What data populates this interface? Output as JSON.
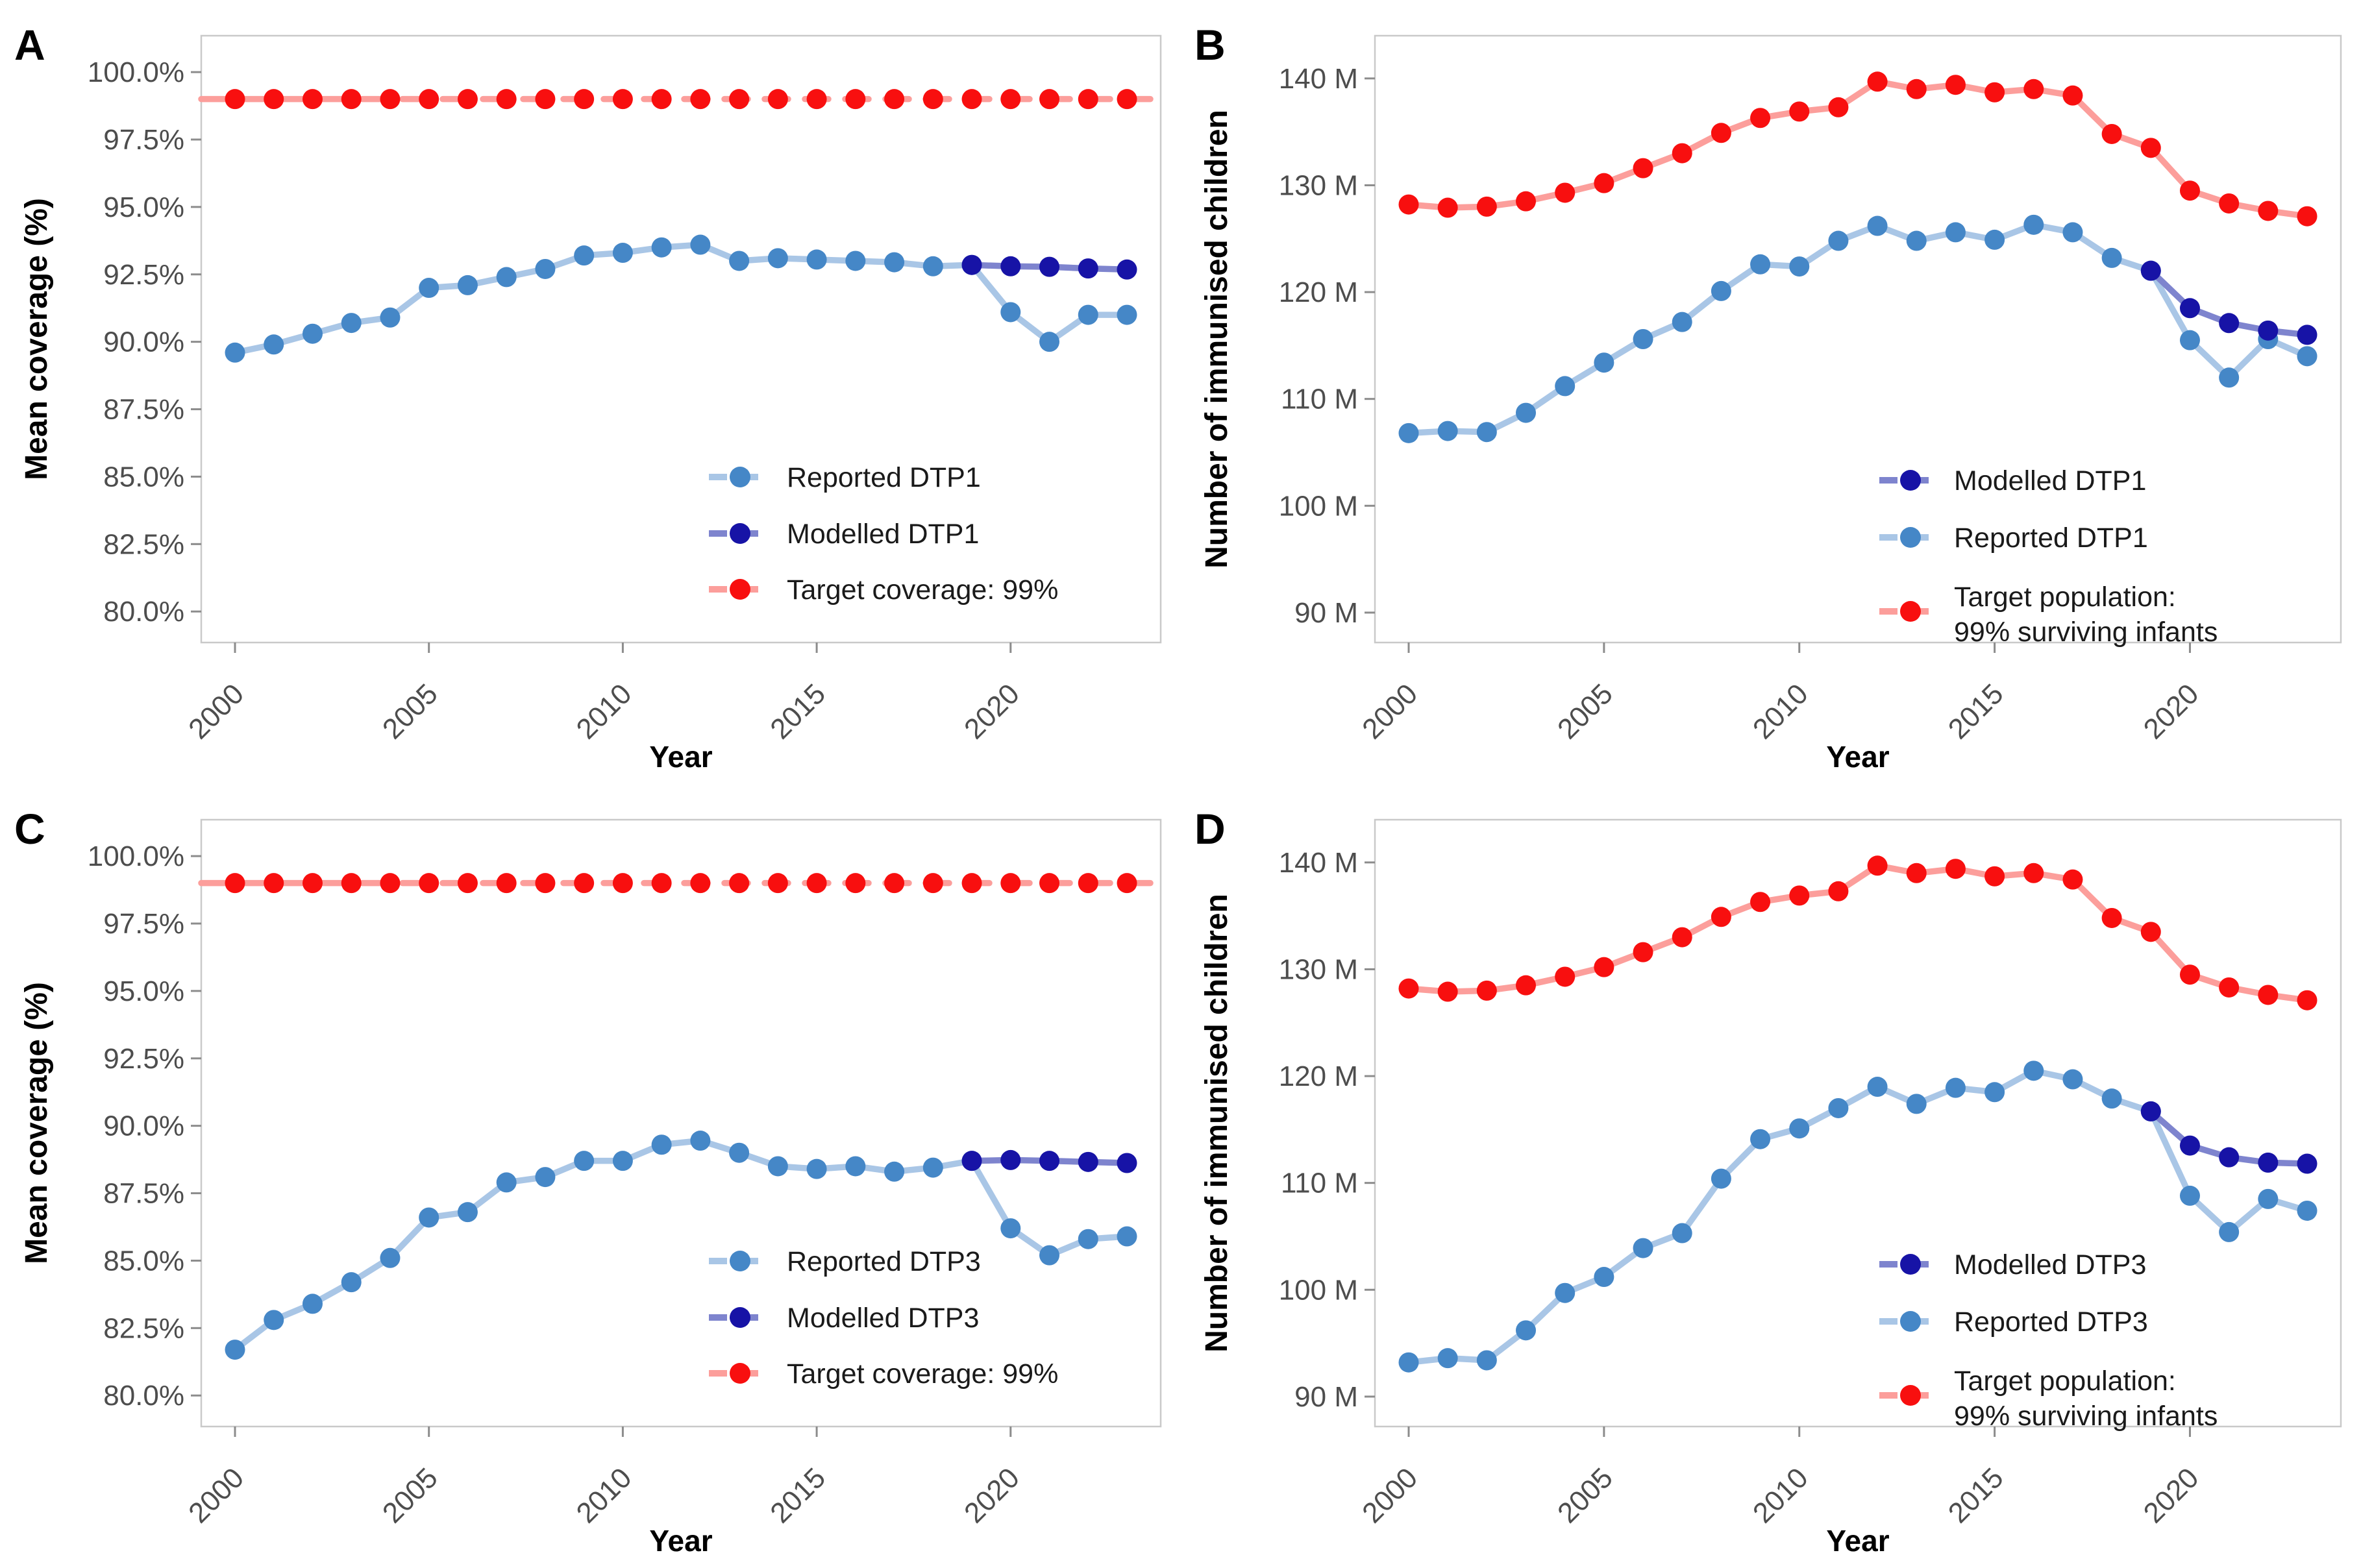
{
  "colors": {
    "reported_marker": "#4587C7",
    "reported_line": "#A9C6E6",
    "modelled_marker": "#1713A6",
    "modelled_line": "#7E84CE",
    "target_marker": "#F80F0F",
    "target_line": "#FC9E9B",
    "axis_text": "#4D4D4D",
    "axis_title": "#000000",
    "panel_border": "#C9C9C9",
    "tick": "#8C8C8C"
  },
  "chart_data": [
    {
      "id": "a",
      "panel_label": "A",
      "type": "line",
      "xlabel": "Year",
      "ylabel": "Mean coverage (%)",
      "x": [
        2000,
        2001,
        2002,
        2003,
        2004,
        2005,
        2006,
        2007,
        2008,
        2009,
        2010,
        2011,
        2012,
        2013,
        2014,
        2015,
        2016,
        2017,
        2018,
        2019,
        2020,
        2021,
        2022,
        2023
      ],
      "xtick_labels": [
        "2000",
        "2005",
        "2010",
        "2015",
        "2020"
      ],
      "xticks": [
        2000,
        2005,
        2010,
        2015,
        2020
      ],
      "ylim": [
        78.85,
        101.35
      ],
      "ytick_values": [
        100,
        97.5,
        95,
        92.5,
        90,
        87.5,
        85,
        82.5,
        80
      ],
      "ytick_labels": [
        "100.0%",
        "97.5%",
        "95.0%",
        "92.5%",
        "90.0%",
        "87.5%",
        "85.0%",
        "82.5%",
        "80.0%"
      ],
      "series": [
        {
          "name": "Target coverage: 99%",
          "role": "target",
          "dashed": true,
          "full_width": true,
          "x_start": 2000,
          "values": [
            99,
            99,
            99,
            99,
            99,
            99,
            99,
            99,
            99,
            99,
            99,
            99,
            99,
            99,
            99,
            99,
            99,
            99,
            99,
            99,
            99,
            99,
            99,
            99
          ]
        },
        {
          "name": "Reported DTP1",
          "role": "reported",
          "dashed": false,
          "full_width": false,
          "x_start": 2000,
          "values": [
            89.6,
            89.9,
            90.3,
            90.7,
            90.9,
            92.0,
            92.1,
            92.4,
            92.7,
            93.2,
            93.3,
            93.5,
            93.6,
            93.0,
            93.1,
            93.05,
            93.0,
            92.95,
            92.8,
            92.85,
            91.1,
            90.0,
            91.0,
            91.0
          ]
        },
        {
          "name": "Modelled DTP1",
          "role": "modelled",
          "dashed": false,
          "full_width": false,
          "x_start": 2019,
          "values": [
            92.85,
            92.8,
            92.78,
            92.72,
            92.68
          ]
        }
      ],
      "legend": {
        "position": "inside-bottom-right",
        "key_x": 1140,
        "label_x": 1212,
        "rows": [
          735,
          822,
          908
        ],
        "items": [
          {
            "label": "Reported DTP1",
            "role": "reported"
          },
          {
            "label": "Modelled DTP1",
            "role": "modelled"
          },
          {
            "label": "Target coverage: 99%",
            "role": "target"
          }
        ]
      }
    },
    {
      "id": "b",
      "panel_label": "B",
      "type": "line",
      "xlabel": "Year",
      "ylabel": "Number of immunised children",
      "x": [
        2000,
        2001,
        2002,
        2003,
        2004,
        2005,
        2006,
        2007,
        2008,
        2009,
        2010,
        2011,
        2012,
        2013,
        2014,
        2015,
        2016,
        2017,
        2018,
        2019,
        2020,
        2021,
        2022,
        2023
      ],
      "xtick_labels": [
        "2000",
        "2005",
        "2010",
        "2015",
        "2020"
      ],
      "xticks": [
        2000,
        2005,
        2010,
        2015,
        2020
      ],
      "ylim": [
        87.2,
        144.0
      ],
      "ytick_values": [
        140,
        130,
        120,
        110,
        100,
        90
      ],
      "ytick_labels": [
        "140 M",
        "130 M",
        "120 M",
        "110 M",
        "100 M",
        "90 M"
      ],
      "series": [
        {
          "name": "Target population: 99% surviving infants",
          "role": "target",
          "dashed": false,
          "full_width": false,
          "x_start": 2000,
          "values": [
            128.2,
            127.9,
            128.0,
            128.5,
            129.3,
            130.2,
            131.6,
            133.0,
            134.9,
            136.3,
            136.9,
            137.3,
            139.7,
            139.0,
            139.4,
            138.7,
            139.0,
            138.4,
            134.8,
            133.5,
            129.5,
            128.3,
            127.6,
            127.1
          ]
        },
        {
          "name": "Reported DTP1",
          "role": "reported",
          "dashed": false,
          "full_width": false,
          "x_start": 2000,
          "values": [
            106.8,
            107.0,
            106.9,
            108.7,
            111.2,
            113.4,
            115.6,
            117.2,
            120.1,
            122.6,
            122.4,
            124.8,
            126.2,
            124.8,
            125.6,
            124.9,
            126.3,
            125.6,
            123.2,
            122.0,
            115.5,
            112.0,
            115.6,
            114.0
          ]
        },
        {
          "name": "Modelled DTP1",
          "role": "modelled",
          "dashed": false,
          "full_width": false,
          "x_start": 2019,
          "values": [
            122.0,
            118.5,
            117.1,
            116.4,
            116.0
          ]
        }
      ],
      "legend": {
        "position": "inside-bottom-right",
        "key_x": 1125,
        "label_x": 1192,
        "rows": [
          740,
          828,
          942
        ],
        "items": [
          {
            "label": "Modelled DTP1",
            "role": "modelled"
          },
          {
            "label": "Reported DTP1",
            "role": "reported"
          },
          {
            "label": "Target population:",
            "label2": "99% surviving infants",
            "role": "target"
          }
        ]
      }
    },
    {
      "id": "c",
      "panel_label": "C",
      "type": "line",
      "xlabel": "Year",
      "ylabel": "Mean coverage (%)",
      "x": [
        2000,
        2001,
        2002,
        2003,
        2004,
        2005,
        2006,
        2007,
        2008,
        2009,
        2010,
        2011,
        2012,
        2013,
        2014,
        2015,
        2016,
        2017,
        2018,
        2019,
        2020,
        2021,
        2022,
        2023
      ],
      "xtick_labels": [
        "2000",
        "2005",
        "2010",
        "2015",
        "2020"
      ],
      "xticks": [
        2000,
        2005,
        2010,
        2015,
        2020
      ],
      "ylim": [
        78.85,
        101.35
      ],
      "ytick_values": [
        100,
        97.5,
        95,
        92.5,
        90,
        87.5,
        85,
        82.5,
        80
      ],
      "ytick_labels": [
        "100.0%",
        "97.5%",
        "95.0%",
        "92.5%",
        "90.0%",
        "87.5%",
        "85.0%",
        "82.5%",
        "80.0%"
      ],
      "series": [
        {
          "name": "Target coverage: 99%",
          "role": "target",
          "dashed": true,
          "full_width": true,
          "x_start": 2000,
          "values": [
            99,
            99,
            99,
            99,
            99,
            99,
            99,
            99,
            99,
            99,
            99,
            99,
            99,
            99,
            99,
            99,
            99,
            99,
            99,
            99,
            99,
            99,
            99,
            99
          ]
        },
        {
          "name": "Reported DTP3",
          "role": "reported",
          "dashed": false,
          "full_width": false,
          "x_start": 2000,
          "values": [
            81.7,
            82.8,
            83.4,
            84.2,
            85.1,
            86.6,
            86.8,
            87.9,
            88.1,
            88.7,
            88.7,
            89.3,
            89.45,
            89.0,
            88.5,
            88.4,
            88.5,
            88.3,
            88.45,
            88.7,
            86.2,
            85.2,
            85.8,
            85.9
          ]
        },
        {
          "name": "Modelled DTP3",
          "role": "modelled",
          "dashed": false,
          "full_width": false,
          "x_start": 2019,
          "values": [
            88.7,
            88.73,
            88.7,
            88.66,
            88.62
          ]
        }
      ],
      "legend": {
        "position": "inside-bottom-right",
        "key_x": 1140,
        "label_x": 1212,
        "rows": [
          735,
          822,
          908
        ],
        "items": [
          {
            "label": "Reported DTP3",
            "role": "reported"
          },
          {
            "label": "Modelled DTP3",
            "role": "modelled"
          },
          {
            "label": "Target coverage: 99%",
            "role": "target"
          }
        ]
      }
    },
    {
      "id": "d",
      "panel_label": "D",
      "type": "line",
      "xlabel": "Year",
      "ylabel": "Number of immunised children",
      "x": [
        2000,
        2001,
        2002,
        2003,
        2004,
        2005,
        2006,
        2007,
        2008,
        2009,
        2010,
        2011,
        2012,
        2013,
        2014,
        2015,
        2016,
        2017,
        2018,
        2019,
        2020,
        2021,
        2022,
        2023
      ],
      "xtick_labels": [
        "2000",
        "2005",
        "2010",
        "2015",
        "2020"
      ],
      "xticks": [
        2000,
        2005,
        2010,
        2015,
        2020
      ],
      "ylim": [
        87.2,
        144.0
      ],
      "ytick_values": [
        140,
        130,
        120,
        110,
        100,
        90
      ],
      "ytick_labels": [
        "140 M",
        "130 M",
        "120 M",
        "110 M",
        "100 M",
        "90 M"
      ],
      "series": [
        {
          "name": "Target population: 99% surviving infants",
          "role": "target",
          "dashed": false,
          "full_width": false,
          "x_start": 2000,
          "values": [
            128.2,
            127.9,
            128.0,
            128.5,
            129.3,
            130.2,
            131.6,
            133.0,
            134.9,
            136.3,
            136.9,
            137.3,
            139.7,
            139.0,
            139.4,
            138.7,
            139.0,
            138.4,
            134.8,
            133.5,
            129.5,
            128.3,
            127.6,
            127.1
          ]
        },
        {
          "name": "Reported DTP3",
          "role": "reported",
          "dashed": false,
          "full_width": false,
          "x_start": 2000,
          "values": [
            93.2,
            93.6,
            93.4,
            96.2,
            99.7,
            101.2,
            103.9,
            105.3,
            110.4,
            114.1,
            115.1,
            117.0,
            119.0,
            117.4,
            118.9,
            118.5,
            120.5,
            119.7,
            117.9,
            116.7,
            108.8,
            105.4,
            108.5,
            107.4
          ]
        },
        {
          "name": "Modelled DTP3",
          "role": "modelled",
          "dashed": false,
          "full_width": false,
          "x_start": 2019,
          "values": [
            116.7,
            113.5,
            112.4,
            111.9,
            111.8
          ]
        }
      ],
      "legend": {
        "position": "inside-bottom-right",
        "key_x": 1125,
        "label_x": 1192,
        "rows": [
          740,
          828,
          942
        ],
        "items": [
          {
            "label": "Modelled DTP3",
            "role": "modelled"
          },
          {
            "label": "Reported DTP3",
            "role": "reported"
          },
          {
            "label": "Target population:",
            "label2": "99% surviving infants",
            "role": "target"
          }
        ]
      }
    }
  ]
}
